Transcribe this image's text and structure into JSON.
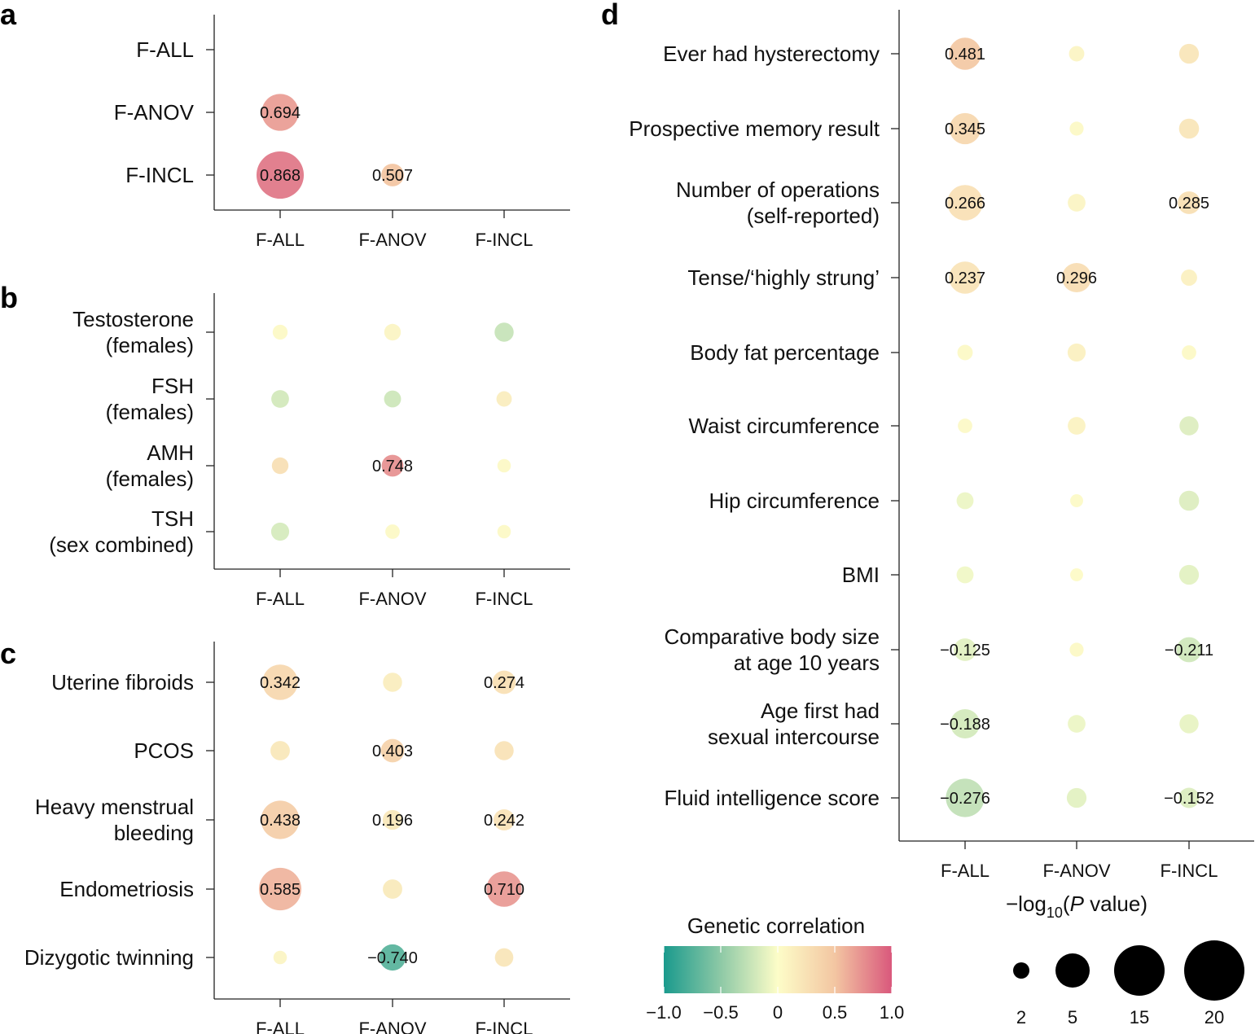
{
  "panels": [
    {
      "id": "a",
      "label": "a",
      "rows": [
        [
          "F-ALL"
        ],
        [
          "F-ANOV"
        ],
        [
          "F-INCL"
        ]
      ],
      "cols": [
        "F-ALL",
        "F-ANOV",
        "F-INCL"
      ],
      "points": [
        {
          "row": 1,
          "col": 0,
          "rg": 0.694,
          "p": 11,
          "label": "0.694"
        },
        {
          "row": 2,
          "col": 0,
          "rg": 0.868,
          "p": 19,
          "label": "0.868"
        },
        {
          "row": 2,
          "col": 1,
          "rg": 0.507,
          "p": 3.5,
          "label": "0.507"
        }
      ]
    },
    {
      "id": "b",
      "label": "b",
      "rows": [
        [
          "Testosterone",
          "(females)"
        ],
        [
          "FSH",
          "(females)"
        ],
        [
          "AMH",
          "(females)"
        ],
        [
          "TSH",
          "(sex combined)"
        ]
      ],
      "cols": [
        "F-ALL",
        "F-ANOV",
        "F-INCL"
      ],
      "points": [
        {
          "row": 0,
          "col": 0,
          "rg": 0.05,
          "p": 1.2
        },
        {
          "row": 0,
          "col": 1,
          "rg": 0.08,
          "p": 1.6
        },
        {
          "row": 0,
          "col": 2,
          "rg": -0.25,
          "p": 2.3
        },
        {
          "row": 1,
          "col": 0,
          "rg": -0.2,
          "p": 1.9
        },
        {
          "row": 1,
          "col": 1,
          "rg": -0.22,
          "p": 1.7
        },
        {
          "row": 1,
          "col": 2,
          "rg": 0.15,
          "p": 1.3
        },
        {
          "row": 2,
          "col": 0,
          "rg": 0.28,
          "p": 1.6
        },
        {
          "row": 2,
          "col": 1,
          "rg": 0.748,
          "p": 3.2,
          "label": "0.748"
        },
        {
          "row": 2,
          "col": 2,
          "rg": 0.05,
          "p": 0.9
        },
        {
          "row": 3,
          "col": 0,
          "rg": -0.18,
          "p": 2.0
        },
        {
          "row": 3,
          "col": 1,
          "rg": 0.05,
          "p": 1.1
        },
        {
          "row": 3,
          "col": 2,
          "rg": 0.05,
          "p": 0.9
        }
      ]
    },
    {
      "id": "c",
      "label": "c",
      "rows": [
        [
          "Uterine fibroids"
        ],
        [
          "PCOS"
        ],
        [
          "Heavy menstrual",
          "bleeding"
        ],
        [
          "Endometriosis"
        ],
        [
          "Dizygotic twinning"
        ]
      ],
      "cols": [
        "F-ALL",
        "F-ANOV",
        "F-INCL"
      ],
      "points": [
        {
          "row": 0,
          "col": 0,
          "rg": 0.342,
          "p": 10,
          "label": "0.342"
        },
        {
          "row": 0,
          "col": 1,
          "rg": 0.15,
          "p": 2.3
        },
        {
          "row": 0,
          "col": 2,
          "rg": 0.274,
          "p": 3.8,
          "label": "0.274"
        },
        {
          "row": 1,
          "col": 0,
          "rg": 0.2,
          "p": 2.4
        },
        {
          "row": 1,
          "col": 1,
          "rg": 0.403,
          "p": 3.8,
          "label": "0.403"
        },
        {
          "row": 1,
          "col": 2,
          "rg": 0.25,
          "p": 2.3
        },
        {
          "row": 2,
          "col": 0,
          "rg": 0.438,
          "p": 12,
          "label": "0.438"
        },
        {
          "row": 2,
          "col": 1,
          "rg": 0.196,
          "p": 2.5,
          "label": "0.196"
        },
        {
          "row": 2,
          "col": 2,
          "rg": 0.242,
          "p": 3.0,
          "label": "0.242"
        },
        {
          "row": 3,
          "col": 0,
          "rg": 0.585,
          "p": 15,
          "label": "0.585"
        },
        {
          "row": 3,
          "col": 1,
          "rg": 0.18,
          "p": 2.4
        },
        {
          "row": 3,
          "col": 2,
          "rg": 0.71,
          "p": 10,
          "label": "0.710"
        },
        {
          "row": 4,
          "col": 0,
          "rg": 0.08,
          "p": 0.9
        },
        {
          "row": 4,
          "col": 1,
          "rg": -0.74,
          "p": 5,
          "label": "−0.740"
        },
        {
          "row": 4,
          "col": 2,
          "rg": 0.22,
          "p": 2.1
        }
      ]
    },
    {
      "id": "d",
      "label": "d",
      "rows": [
        [
          "Ever had hysterectomy"
        ],
        [
          "Prospective memory result"
        ],
        [
          "Number of operations",
          "(self-reported)"
        ],
        [
          "Tense/‘highly strung’"
        ],
        [
          "Body fat percentage"
        ],
        [
          "Waist circumference"
        ],
        [
          "Hip circumference"
        ],
        [
          "BMI"
        ],
        [
          "Comparative body size",
          "at age 10 years"
        ],
        [
          "Age first had",
          "sexual intercourse"
        ],
        [
          "Fluid intelligence score"
        ]
      ],
      "cols": [
        "F-ALL",
        "F-ANOV",
        "F-INCL"
      ],
      "points": [
        {
          "row": 0,
          "col": 0,
          "rg": 0.481,
          "p": 8,
          "label": "0.481"
        },
        {
          "row": 0,
          "col": 1,
          "rg": 0.08,
          "p": 1.3
        },
        {
          "row": 0,
          "col": 2,
          "rg": 0.22,
          "p": 2.5
        },
        {
          "row": 1,
          "col": 0,
          "rg": 0.345,
          "p": 7.5,
          "label": "0.345"
        },
        {
          "row": 1,
          "col": 1,
          "rg": 0.05,
          "p": 1.0
        },
        {
          "row": 1,
          "col": 2,
          "rg": 0.22,
          "p": 2.6
        },
        {
          "row": 2,
          "col": 0,
          "rg": 0.266,
          "p": 10,
          "label": "0.266"
        },
        {
          "row": 2,
          "col": 1,
          "rg": 0.08,
          "p": 1.9
        },
        {
          "row": 2,
          "col": 2,
          "rg": 0.285,
          "p": 3.5,
          "label": "0.285"
        },
        {
          "row": 3,
          "col": 0,
          "rg": 0.237,
          "p": 8,
          "label": "0.237"
        },
        {
          "row": 3,
          "col": 1,
          "rg": 0.296,
          "p": 6.5,
          "label": "0.296"
        },
        {
          "row": 3,
          "col": 2,
          "rg": 0.12,
          "p": 1.5
        },
        {
          "row": 4,
          "col": 0,
          "rg": 0.05,
          "p": 1.3
        },
        {
          "row": 4,
          "col": 1,
          "rg": 0.12,
          "p": 2.0
        },
        {
          "row": 4,
          "col": 2,
          "rg": 0.05,
          "p": 1.1
        },
        {
          "row": 5,
          "col": 0,
          "rg": 0.04,
          "p": 1.1
        },
        {
          "row": 5,
          "col": 1,
          "rg": 0.1,
          "p": 1.9
        },
        {
          "row": 5,
          "col": 2,
          "rg": -0.15,
          "p": 2.3
        },
        {
          "row": 6,
          "col": 0,
          "rg": -0.08,
          "p": 1.7
        },
        {
          "row": 6,
          "col": 1,
          "rg": 0.03,
          "p": 0.8
        },
        {
          "row": 6,
          "col": 2,
          "rg": -0.15,
          "p": 2.6
        },
        {
          "row": 7,
          "col": 0,
          "rg": -0.06,
          "p": 1.7
        },
        {
          "row": 7,
          "col": 1,
          "rg": 0.02,
          "p": 0.8
        },
        {
          "row": 7,
          "col": 2,
          "rg": -0.12,
          "p": 2.5
        },
        {
          "row": 8,
          "col": 0,
          "rg": -0.125,
          "p": 3.5,
          "label": "−0.125"
        },
        {
          "row": 8,
          "col": 1,
          "rg": 0.05,
          "p": 1.0
        },
        {
          "row": 8,
          "col": 2,
          "rg": -0.211,
          "p": 4.5,
          "label": "−0.211"
        },
        {
          "row": 9,
          "col": 0,
          "rg": -0.188,
          "p": 6.5,
          "label": "−0.188"
        },
        {
          "row": 9,
          "col": 1,
          "rg": -0.08,
          "p": 1.9
        },
        {
          "row": 9,
          "col": 2,
          "rg": -0.1,
          "p": 2.3
        },
        {
          "row": 10,
          "col": 0,
          "rg": -0.276,
          "p": 12,
          "label": "−0.276"
        },
        {
          "row": 10,
          "col": 1,
          "rg": -0.12,
          "p": 2.5
        },
        {
          "row": 10,
          "col": 2,
          "rg": -0.152,
          "p": 2.7,
          "label": "−0.152"
        }
      ]
    }
  ],
  "colorbar": {
    "title": "Genetic correlation",
    "ticks": [
      "−1.0",
      "−0.5",
      "0",
      "0.5",
      "1.0"
    ],
    "tick_values": [
      -1.0,
      -0.5,
      0,
      0.5,
      1.0
    ],
    "stops": [
      "#1a9a8d",
      "#8ec9a6",
      "#fdfdc8",
      "#f3c6a2",
      "#d9587c"
    ]
  },
  "size_legend": {
    "title_prefix": "−log",
    "title_sub": "10",
    "title_paren": "(",
    "title_p": "P",
    "title_suffix": " value)",
    "values": [
      2,
      5,
      15,
      20
    ],
    "labels": [
      "2",
      "5",
      "15",
      "20"
    ]
  }
}
